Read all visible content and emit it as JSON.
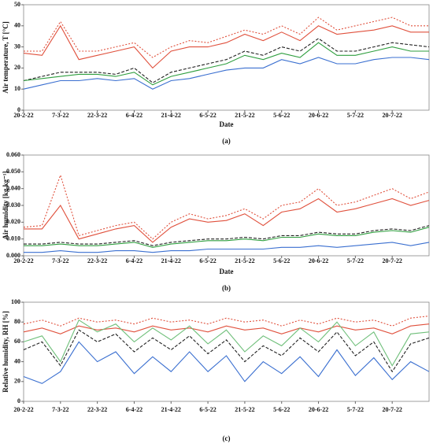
{
  "chart_data": [
    {
      "type": "line",
      "panel": "(a)",
      "xlabel": "Date",
      "ylabel": "Air temperature, T [°C]",
      "categories": [
        "20-2-22",
        null,
        "7-3-22",
        null,
        "22-3-22",
        null,
        "6-4-22",
        null,
        "21-4-22",
        null,
        "6-5-22",
        null,
        "21-5-22",
        null,
        "5-6-22",
        null,
        "20-6-22",
        null,
        "5-7-22",
        null,
        "20-7-22",
        null,
        null
      ],
      "ylim": [
        0,
        50
      ],
      "yticks": [
        0,
        10,
        20,
        30,
        40,
        50
      ],
      "series": [
        {
          "color": "#e0503c",
          "style": "dotted",
          "values": [
            28,
            28,
            42,
            28,
            28,
            30,
            32,
            25,
            30,
            33,
            32,
            35,
            38,
            36,
            40,
            36,
            44,
            38,
            40,
            42,
            44,
            40,
            40
          ]
        },
        {
          "color": "#e0503c",
          "style": "solid",
          "values": [
            27,
            26,
            40,
            24,
            26,
            28,
            30,
            20,
            28,
            30,
            30,
            32,
            36,
            33,
            37,
            33,
            40,
            36,
            37,
            38,
            40,
            37,
            37
          ]
        },
        {
          "color": "#222222",
          "style": "dashed",
          "values": [
            14,
            16,
            18,
            18,
            18,
            17,
            20,
            13,
            18,
            20,
            22,
            24,
            28,
            26,
            30,
            28,
            34,
            28,
            28,
            30,
            32,
            31,
            30
          ]
        },
        {
          "color": "#2e9e3e",
          "style": "solid",
          "values": [
            14,
            15,
            16,
            17,
            17,
            16,
            18,
            12,
            16,
            18,
            20,
            22,
            26,
            24,
            27,
            25,
            32,
            26,
            26,
            28,
            30,
            28,
            28
          ]
        },
        {
          "color": "#3a6fd0",
          "style": "solid",
          "values": [
            10,
            12,
            14,
            14,
            15,
            14,
            15,
            10,
            14,
            15,
            17,
            19,
            20,
            20,
            24,
            22,
            25,
            22,
            22,
            24,
            25,
            25,
            24
          ]
        }
      ]
    },
    {
      "type": "line",
      "panel": "(b)",
      "xlabel": "Date",
      "ylabel": "Air humidity [kg kg⁻¹]",
      "categories": [
        "20-2-22",
        null,
        "7-3-22",
        null,
        "22-3-22",
        null,
        "6-4-22",
        null,
        "21-4-22",
        null,
        "6-5-22",
        null,
        "21-5-22",
        null,
        "5-6-22",
        null,
        "20-6-22",
        null,
        "5-7-22",
        null,
        "20-7-22",
        null,
        null
      ],
      "ylim": [
        0,
        0.06
      ],
      "yticks": [
        {
          "value": 0,
          "label": "0.000"
        },
        {
          "value": 0.01,
          "label": "0.010"
        },
        {
          "value": 0.02,
          "label": "0.020"
        },
        {
          "value": 0.03,
          "label": "0.030"
        },
        {
          "value": 0.04,
          "label": "0.040"
        },
        {
          "value": 0.05,
          "label": "0.050"
        },
        {
          "value": 0.06,
          "label": "0.060"
        }
      ],
      "series": [
        {
          "color": "#e0503c",
          "style": "dotted",
          "values": [
            0.017,
            0.018,
            0.048,
            0.012,
            0.015,
            0.018,
            0.02,
            0.01,
            0.02,
            0.025,
            0.022,
            0.024,
            0.028,
            0.022,
            0.03,
            0.032,
            0.04,
            0.03,
            0.032,
            0.036,
            0.04,
            0.034,
            0.038
          ]
        },
        {
          "color": "#e0503c",
          "style": "solid",
          "values": [
            0.016,
            0.016,
            0.03,
            0.01,
            0.013,
            0.016,
            0.018,
            0.008,
            0.017,
            0.022,
            0.02,
            0.021,
            0.025,
            0.018,
            0.026,
            0.028,
            0.034,
            0.026,
            0.028,
            0.031,
            0.034,
            0.03,
            0.033
          ]
        },
        {
          "color": "#222222",
          "style": "dashed",
          "values": [
            0.007,
            0.007,
            0.008,
            0.007,
            0.007,
            0.008,
            0.009,
            0.006,
            0.008,
            0.009,
            0.01,
            0.01,
            0.011,
            0.01,
            0.012,
            0.012,
            0.014,
            0.013,
            0.013,
            0.015,
            0.016,
            0.015,
            0.018
          ]
        },
        {
          "color": "#2e9e3e",
          "style": "solid",
          "values": [
            0.006,
            0.006,
            0.007,
            0.006,
            0.006,
            0.007,
            0.008,
            0.005,
            0.007,
            0.008,
            0.009,
            0.009,
            0.01,
            0.009,
            0.011,
            0.011,
            0.013,
            0.012,
            0.012,
            0.014,
            0.015,
            0.014,
            0.017
          ]
        },
        {
          "color": "#3a6fd0",
          "style": "solid",
          "values": [
            0.002,
            0.002,
            0.003,
            0.002,
            0.002,
            0.003,
            0.003,
            0.002,
            0.003,
            0.003,
            0.004,
            0.004,
            0.004,
            0.004,
            0.005,
            0.005,
            0.006,
            0.005,
            0.006,
            0.007,
            0.008,
            0.006,
            0.008
          ]
        }
      ]
    },
    {
      "type": "line",
      "panel": "(c)",
      "ylabel": "Relative humidity, RH [%]",
      "categories": [
        "20-2-22",
        null,
        "7-3-22",
        null,
        "22-3-22",
        null,
        "6-4-22",
        null,
        "21-4-22",
        null,
        "6-5-22",
        null,
        "21-5-22",
        null,
        "5-6-22",
        null,
        "20-6-22",
        null,
        "5-7-22",
        null,
        "20-7-22",
        null,
        null
      ],
      "ylim": [
        0,
        100
      ],
      "yticks": [
        0,
        20,
        40,
        60,
        80,
        100
      ],
      "series": [
        {
          "color": "#e0503c",
          "style": "dotted",
          "values": [
            78,
            82,
            76,
            84,
            80,
            82,
            78,
            84,
            80,
            82,
            78,
            84,
            80,
            82,
            76,
            82,
            78,
            84,
            80,
            82,
            76,
            84,
            86
          ]
        },
        {
          "color": "#e0503c",
          "style": "solid",
          "values": [
            70,
            74,
            68,
            76,
            72,
            74,
            70,
            76,
            72,
            74,
            70,
            76,
            72,
            74,
            68,
            74,
            70,
            76,
            72,
            74,
            68,
            76,
            78
          ]
        },
        {
          "color": "#6fbf7a",
          "style": "solid",
          "values": [
            60,
            66,
            40,
            82,
            70,
            78,
            60,
            74,
            62,
            76,
            58,
            72,
            50,
            66,
            56,
            74,
            60,
            80,
            56,
            70,
            36,
            68,
            70
          ]
        },
        {
          "color": "#222222",
          "style": "dashed",
          "values": [
            52,
            60,
            36,
            72,
            60,
            68,
            50,
            64,
            52,
            66,
            48,
            62,
            40,
            56,
            46,
            64,
            50,
            70,
            46,
            60,
            30,
            58,
            64
          ]
        },
        {
          "color": "#3a6fd0",
          "style": "solid",
          "values": [
            25,
            18,
            30,
            60,
            40,
            50,
            28,
            45,
            30,
            50,
            30,
            46,
            20,
            40,
            28,
            45,
            25,
            52,
            26,
            44,
            22,
            40,
            30
          ]
        }
      ]
    }
  ]
}
